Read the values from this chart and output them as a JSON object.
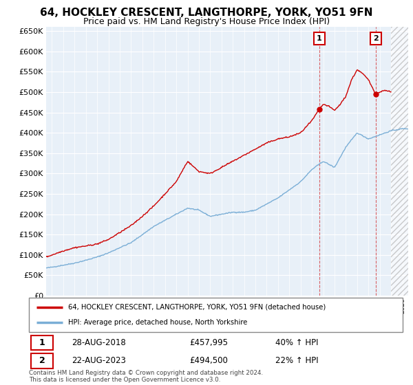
{
  "title": "64, HOCKLEY CRESCENT, LANGTHORPE, YORK, YO51 9FN",
  "subtitle": "Price paid vs. HM Land Registry's House Price Index (HPI)",
  "legend_line1": "64, HOCKLEY CRESCENT, LANGTHORPE, YORK, YO51 9FN (detached house)",
  "legend_line2": "HPI: Average price, detached house, North Yorkshire",
  "annotation1": {
    "num": "1",
    "date": "28-AUG-2018",
    "price": "£457,995",
    "change": "40% ↑ HPI"
  },
  "annotation2": {
    "num": "2",
    "date": "22-AUG-2023",
    "price": "£494,500",
    "change": "22% ↑ HPI"
  },
  "footer": "Contains HM Land Registry data © Crown copyright and database right 2024.\nThis data is licensed under the Open Government Licence v3.0.",
  "ylim": [
    0,
    660000
  ],
  "yticks": [
    0,
    50000,
    100000,
    150000,
    200000,
    250000,
    300000,
    350000,
    400000,
    450000,
    500000,
    550000,
    600000,
    650000
  ],
  "red_color": "#cc0000",
  "blue_color": "#7aaed6",
  "plot_bg_color": "#e8f0f8",
  "marker1_x": 2018.65,
  "marker1_y": 457995,
  "marker2_x": 2023.65,
  "marker2_y": 494500,
  "vline1_x": 2018.65,
  "vline2_x": 2023.65,
  "background_color": "#ffffff",
  "grid_color": "#ffffff",
  "title_fontsize": 11,
  "subtitle_fontsize": 9,
  "hatch_start": 2025.0,
  "xlim_start": 1995,
  "xlim_end": 2026.5
}
